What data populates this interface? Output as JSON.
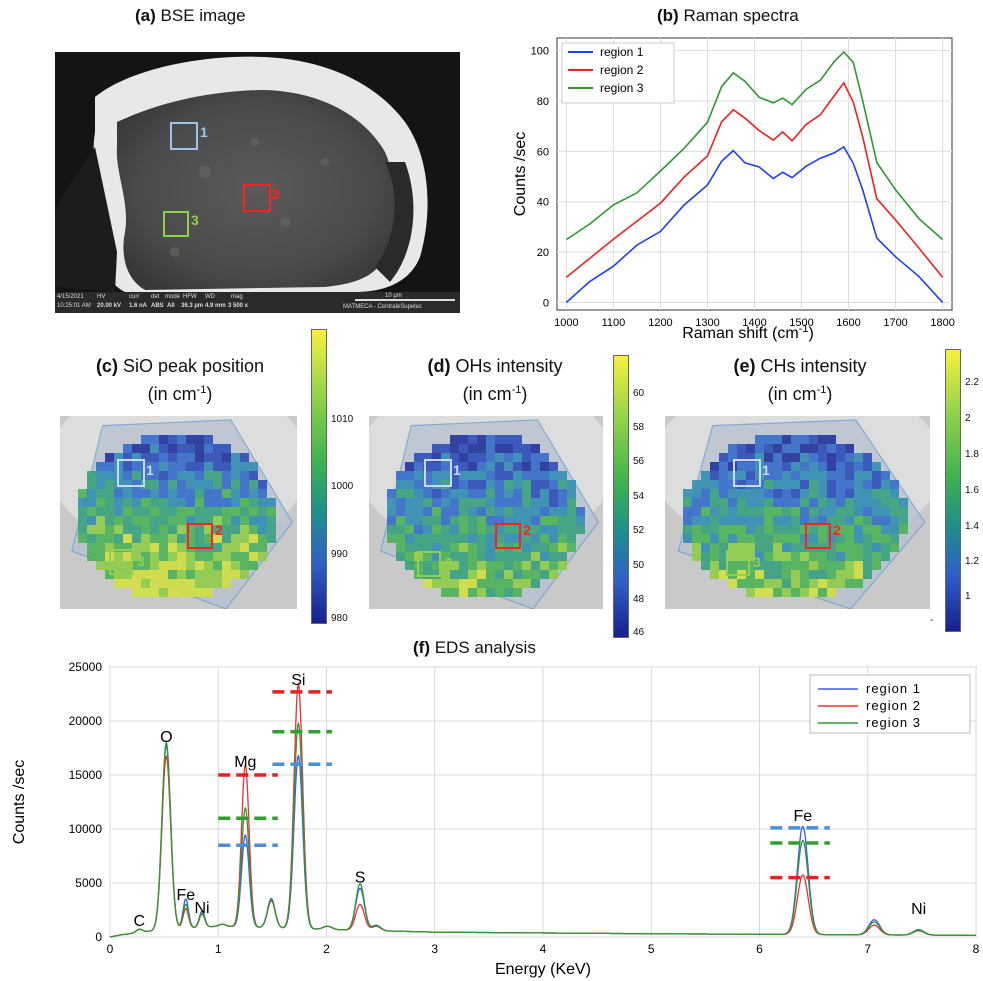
{
  "panels": {
    "a": {
      "letter": "(a)",
      "title": "BSE image",
      "region_labels": [
        "1",
        "2",
        "3"
      ],
      "databar": {
        "date": "4/15/2021",
        "time": "10:25:01 AM",
        "hv_label": "HV",
        "hv": "20.00 kV",
        "curr_label": "curr",
        "curr": "1.6 nA",
        "det_label": "det",
        "det": "ABS",
        "mode_label": "mode",
        "mode": "All",
        "hfw_label": "HFW",
        "hfw": "36.3 µm",
        "wd_label": "WD",
        "wd": "4.9 mm",
        "mag_label": "mag",
        "mag": "3 500 x",
        "scale": "10 µm",
        "lab": "MATMECA - CentraleSupelec"
      }
    },
    "b": {
      "letter": "(b)",
      "title": "Raman spectra"
    },
    "c": {
      "letter": "(c)",
      "title_line1": "SiO peak position",
      "title_line2_pre": "(in cm",
      "title_sup": "-1",
      "title_line2_post": ")",
      "colorbar_ticks": [
        "1010",
        "1000",
        "990",
        "980"
      ],
      "region_labels": [
        "1",
        "2",
        "3"
      ]
    },
    "d": {
      "letter": "(d)",
      "title_line1": "OHs intensity",
      "title_line2_pre": "(in cm",
      "title_sup": "-1",
      "title_line2_post": ")",
      "colorbar_ticks": [
        "60",
        "58",
        "56",
        "54",
        "52",
        "50",
        "48",
        "46"
      ],
      "region_labels": [
        "1",
        "2",
        "3"
      ]
    },
    "e": {
      "letter": "(e)",
      "title_line1": "CHs intensity",
      "title_line2_pre": "(in cm",
      "title_sup": "-1",
      "title_line2_post": ")",
      "colorbar_ticks": [
        "2.2",
        "2",
        "1.8",
        "1.6",
        "1.4",
        "1.2",
        "1",
        "-"
      ],
      "region_labels": [
        "1",
        "2",
        "3"
      ]
    },
    "f": {
      "letter": "(f)",
      "title": "EDS analysis"
    }
  },
  "chart_data": [
    {
      "panel": "b",
      "type": "line",
      "title": "Raman spectra",
      "xlabel_pre": "Raman shift (cm",
      "xlabel_sup": "-1",
      "xlabel_post": ")",
      "ylabel": "Counts /sec",
      "xlim": [
        980,
        1820
      ],
      "ylim": [
        -3,
        105
      ],
      "xticks": [
        "1000",
        "1100",
        "1200",
        "1300",
        "1400",
        "1500",
        "1600",
        "1700",
        "1800"
      ],
      "yticks": [
        "0",
        "20",
        "40",
        "60",
        "80",
        "100"
      ],
      "grid": true,
      "legend_position": "top-left",
      "x": [
        1000,
        1050,
        1100,
        1150,
        1200,
        1250,
        1300,
        1330,
        1355,
        1380,
        1410,
        1440,
        1460,
        1480,
        1510,
        1540,
        1570,
        1590,
        1610,
        1630,
        1660,
        1700,
        1750,
        1800
      ],
      "series": [
        {
          "name": "region 1",
          "color": "#1f3fff",
          "values": [
            0,
            8,
            15,
            22,
            29,
            38,
            47,
            56,
            60,
            56,
            53,
            50,
            51,
            50,
            54,
            57,
            60,
            61,
            56,
            44,
            26,
            18,
            10,
            0
          ]
        },
        {
          "name": "region 2",
          "color": "#ee2020",
          "values": [
            10,
            18,
            25,
            32,
            40,
            49,
            59,
            71,
            77,
            73,
            68,
            65,
            67,
            65,
            70,
            75,
            82,
            87,
            80,
            65,
            42,
            32,
            22,
            10
          ]
        },
        {
          "name": "region 3",
          "color": "#2e9a2e",
          "values": [
            25,
            32,
            38,
            44,
            52,
            61,
            72,
            85,
            92,
            87,
            82,
            79,
            81,
            79,
            84,
            89,
            95,
            100,
            95,
            80,
            56,
            44,
            34,
            25
          ]
        }
      ]
    },
    {
      "panel": "f",
      "type": "line",
      "title": "EDS analysis",
      "xlabel": "Energy (KeV)",
      "ylabel": "Counts /sec",
      "xlim": [
        0,
        8
      ],
      "ylim": [
        0,
        25000
      ],
      "xticks": [
        "0",
        "1",
        "2",
        "3",
        "4",
        "5",
        "6",
        "7",
        "8"
      ],
      "yticks": [
        "0",
        "5000",
        "10000",
        "15000",
        "20000",
        "25000"
      ],
      "grid": true,
      "legend_position": "top-right",
      "peaks_label": [
        {
          "label": "C",
          "x": 0.27,
          "y": 300
        },
        {
          "label": "O",
          "x": 0.52,
          "y": 17300
        },
        {
          "label": "Fe",
          "x": 0.7,
          "y": 2700
        },
        {
          "label": "Ni",
          "x": 0.85,
          "y": 1500
        },
        {
          "label": "Mg",
          "x": 1.25,
          "y": 15000
        },
        {
          "label": "Si",
          "x": 1.74,
          "y": 22600
        },
        {
          "label": "S",
          "x": 2.31,
          "y": 4300
        },
        {
          "label": "Fe",
          "x": 6.4,
          "y": 10000
        },
        {
          "label": "Ni",
          "x": 7.47,
          "y": 1400
        }
      ],
      "background": [
        [
          0.1,
          200
        ],
        [
          0.5,
          700
        ],
        [
          1.0,
          1000
        ],
        [
          2.0,
          700
        ],
        [
          3.0,
          450
        ],
        [
          5.0,
          300
        ],
        [
          8.0,
          150
        ]
      ],
      "series": [
        {
          "name": "region 1",
          "color": "#3a5bff",
          "peaks": [
            [
              0.27,
              300,
              0.03
            ],
            [
              0.52,
              17000,
              0.04
            ],
            [
              0.7,
              2700,
              0.025
            ],
            [
              0.85,
              1500,
              0.025
            ],
            [
              1.04,
              200,
              0.03
            ],
            [
              1.25,
              8500,
              0.035
            ],
            [
              1.49,
              2700,
              0.035
            ],
            [
              1.74,
              16000,
              0.04
            ],
            [
              2.01,
              300,
              0.04
            ],
            [
              2.31,
              3900,
              0.04
            ],
            [
              2.46,
              500,
              0.04
            ],
            [
              6.4,
              10000,
              0.05
            ],
            [
              7.06,
              1400,
              0.05
            ],
            [
              7.47,
              500,
              0.05
            ]
          ],
          "level_mark": [
            {
              "x": [
                1.0,
                1.55
              ],
              "y": 8500
            },
            {
              "x": [
                1.5,
                2.05
              ],
              "y": 16000
            },
            {
              "x": [
                6.1,
                6.65
              ],
              "y": 10100
            }
          ]
        },
        {
          "name": "region 2",
          "color": "#ee3030",
          "peaks": [
            [
              0.27,
              300,
              0.03
            ],
            [
              0.52,
              16000,
              0.04
            ],
            [
              0.7,
              1800,
              0.025
            ],
            [
              0.85,
              1200,
              0.025
            ],
            [
              1.04,
              200,
              0.03
            ],
            [
              1.25,
              15000,
              0.035
            ],
            [
              1.49,
              2500,
              0.035
            ],
            [
              1.74,
              22600,
              0.04
            ],
            [
              2.01,
              300,
              0.04
            ],
            [
              2.31,
              2400,
              0.04
            ],
            [
              2.46,
              400,
              0.04
            ],
            [
              6.4,
              5500,
              0.05
            ],
            [
              7.06,
              900,
              0.05
            ],
            [
              7.47,
              400,
              0.05
            ]
          ],
          "level_mark": [
            {
              "x": [
                1.0,
                1.55
              ],
              "y": 15000
            },
            {
              "x": [
                1.5,
                2.05
              ],
              "y": 22700
            },
            {
              "x": [
                6.1,
                6.65
              ],
              "y": 5500
            }
          ]
        },
        {
          "name": "region 3",
          "color": "#2f9a2f",
          "peaks": [
            [
              0.27,
              300,
              0.03
            ],
            [
              0.52,
              17300,
              0.04
            ],
            [
              0.7,
              2200,
              0.025
            ],
            [
              0.85,
              1300,
              0.025
            ],
            [
              1.04,
              200,
              0.03
            ],
            [
              1.25,
              11000,
              0.035
            ],
            [
              1.49,
              2600,
              0.035
            ],
            [
              1.74,
              19000,
              0.04
            ],
            [
              2.01,
              300,
              0.04
            ],
            [
              2.31,
              4300,
              0.04
            ],
            [
              2.46,
              450,
              0.04
            ],
            [
              6.4,
              8700,
              0.05
            ],
            [
              7.06,
              1200,
              0.05
            ],
            [
              7.47,
              450,
              0.05
            ]
          ],
          "level_mark": [
            {
              "x": [
                1.0,
                1.55
              ],
              "y": 11000
            },
            {
              "x": [
                1.5,
                2.05
              ],
              "y": 19000
            },
            {
              "x": [
                6.1,
                6.65
              ],
              "y": 8700
            }
          ]
        }
      ]
    }
  ]
}
